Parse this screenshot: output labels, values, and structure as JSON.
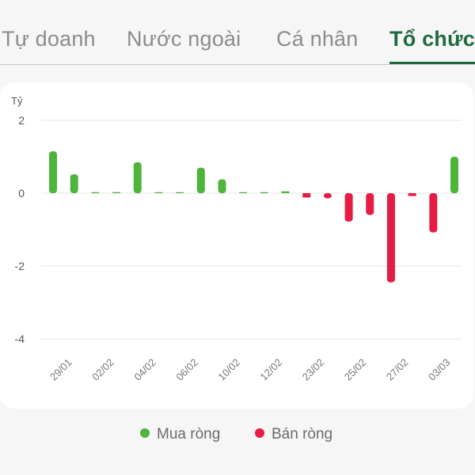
{
  "tabs": [
    {
      "label": "Tự doanh",
      "active": false
    },
    {
      "label": "Nước ngoài",
      "active": false
    },
    {
      "label": "Cá nhân",
      "active": false
    },
    {
      "label": "Tổ chức",
      "active": true
    }
  ],
  "colors": {
    "buy": "#4db53a",
    "sell": "#e51c44",
    "accent": "#1f6b3f"
  },
  "chart_data": {
    "type": "bar",
    "unit_label": "Tỷ",
    "y_ticks": [
      2,
      0,
      -2,
      -4
    ],
    "ylim": [
      -4,
      2
    ],
    "grid": true,
    "x_tick_labels": [
      "29/01",
      "02/02",
      "04/02",
      "06/02",
      "10/02",
      "12/02",
      "23/02",
      "25/02",
      "27/02",
      "03/03"
    ],
    "values": [
      1.15,
      0.52,
      0.0,
      0.03,
      0.85,
      0.0,
      0.0,
      0.7,
      0.38,
      0.0,
      0.0,
      0.05,
      -0.12,
      -0.14,
      -0.78,
      -0.6,
      -2.45,
      -0.08,
      -1.08,
      1.0
    ],
    "series": [
      {
        "name": "Mua ròng",
        "color": "#4db53a"
      },
      {
        "name": "Bán ròng",
        "color": "#e51c44"
      }
    ],
    "legend_position": "bottom"
  }
}
